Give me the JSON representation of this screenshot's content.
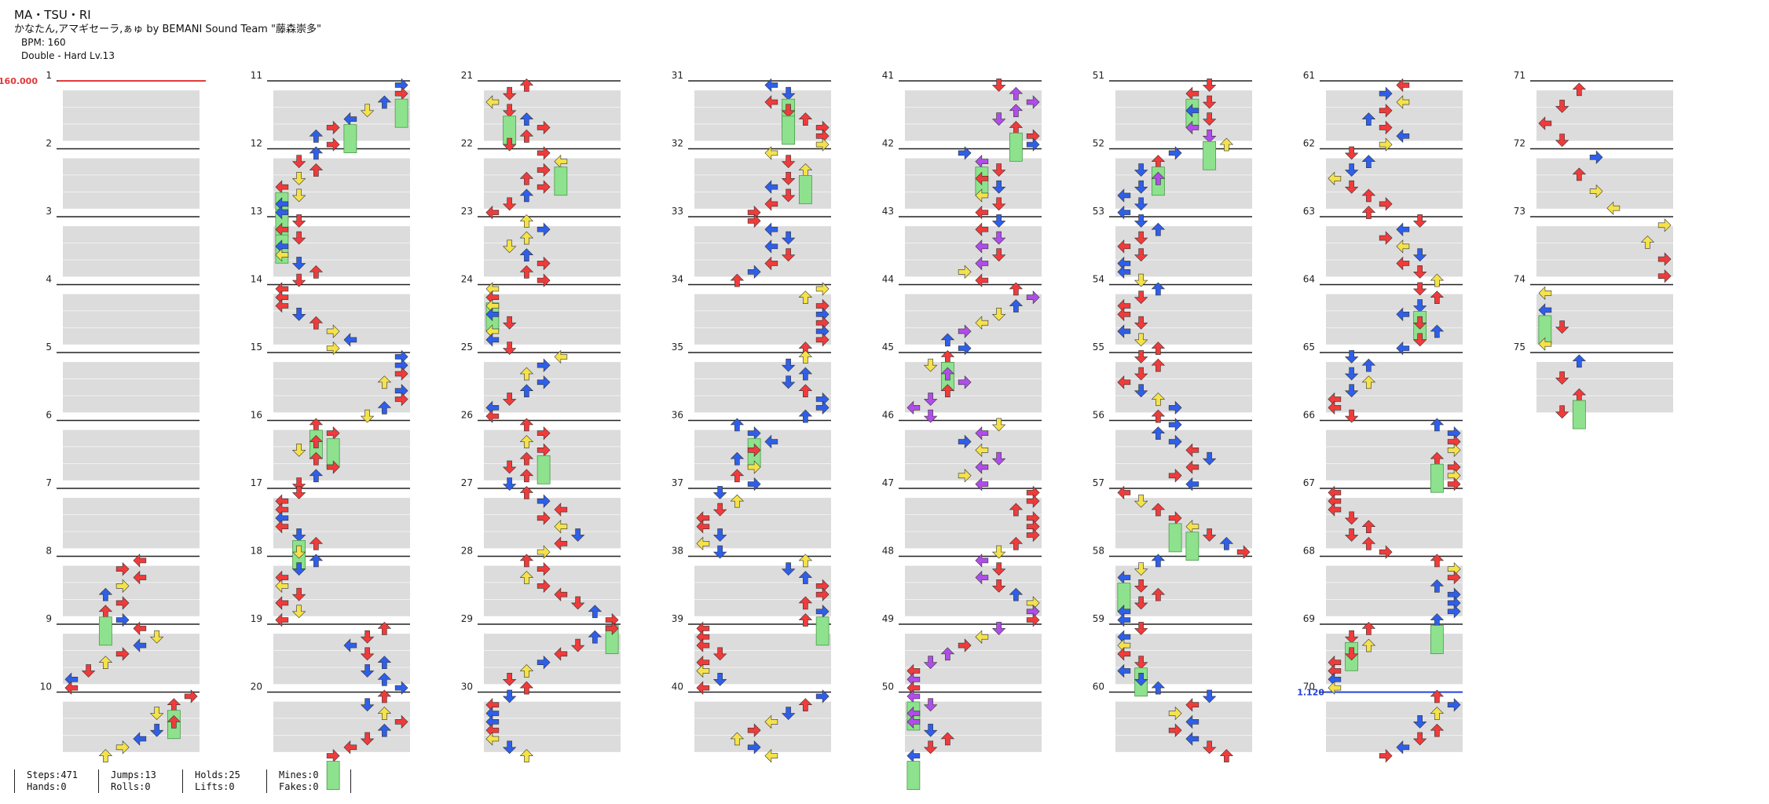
{
  "song": {
    "title": "MA・TSU・RI",
    "artist_line": "かなたん,アマギセーラ,ぁゅ by BEMANI Sound Team \"藤森崇多\"",
    "bpm_text": "BPM: 160",
    "difficulty_text": "Double - Hard  Lv.13"
  },
  "chart_data": {
    "type": "timeline",
    "start_bpm_label": "160.000",
    "mid_marker_label": "1.120",
    "total_measures": 75,
    "column_count": 8,
    "measures_per_column": 10,
    "lanes": 8,
    "note_colors": {
      "quarter": "#ef3b3b",
      "eighth": "#2f5fe8",
      "sixteenth": "#f4e24a",
      "twelfth": "#b04de8",
      "hold": "#8ee28e"
    },
    "highlighted_measures": [
      8,
      9,
      10
    ]
  },
  "stats": [
    {
      "line1": "Steps:471",
      "line2": "Hands:0"
    },
    {
      "line1": "Jumps:13",
      "line2": "Rolls:0"
    },
    {
      "line1": "Holds:25",
      "line2": "Lifts:0"
    },
    {
      "line1": "Mines:0",
      "line2": "Fakes:0"
    }
  ]
}
